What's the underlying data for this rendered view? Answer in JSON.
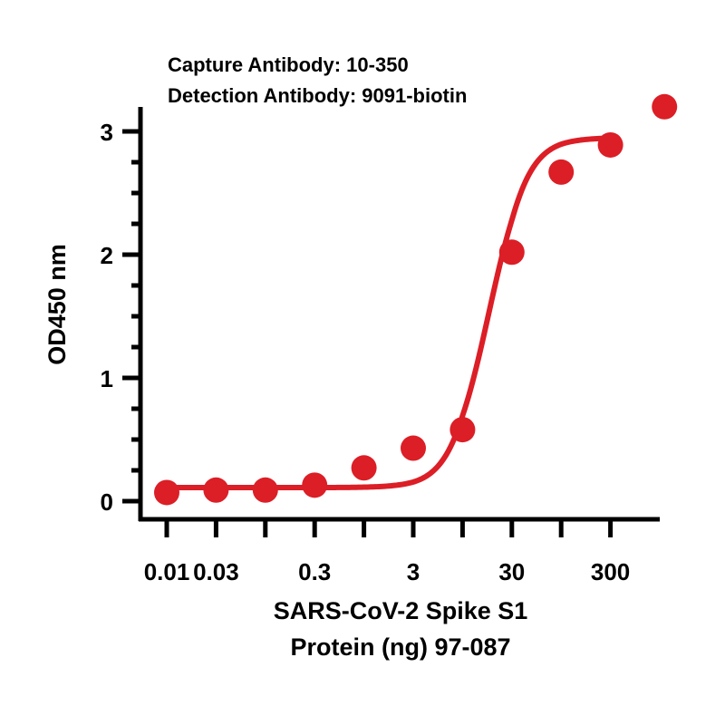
{
  "chart_data": {
    "type": "scatter",
    "title_lines": [
      "Capture Antibody: 10-350",
      "Detection Antibody: 9091-biotin"
    ],
    "xlabel_lines": [
      "SARS-CoV-2 Spike S1",
      "Protein (ng) 97-087"
    ],
    "ylabel": "OD450 nm",
    "x_scale": "log",
    "x_ticks": [
      0.01,
      0.03,
      0.1,
      0.3,
      1,
      3,
      10,
      30,
      100,
      300
    ],
    "x_tick_labels": [
      {
        "value": 0.01,
        "label": "0.01"
      },
      {
        "value": 0.03,
        "label": "0.03"
      },
      {
        "value": 0.3,
        "label": "0.3"
      },
      {
        "value": 3,
        "label": "3"
      },
      {
        "value": 30,
        "label": "30"
      },
      {
        "value": 300,
        "label": "300"
      }
    ],
    "ylim": [
      0,
      3.1
    ],
    "y_major_ticks": [
      0,
      1,
      2,
      3
    ],
    "y_tick_labels": [
      "0",
      "1",
      "2",
      "3"
    ],
    "y_minor_step": 0.25,
    "colors": {
      "series": "#dc1e26",
      "axis": "#000000"
    },
    "series": [
      {
        "points": [
          {
            "x": 0.01,
            "y": 0.07
          },
          {
            "x": 0.03,
            "y": 0.09
          },
          {
            "x": 0.1,
            "y": 0.09
          },
          {
            "x": 0.3,
            "y": 0.13
          },
          {
            "x": 1,
            "y": 0.27
          },
          {
            "x": 3,
            "y": 0.43
          },
          {
            "x": 10,
            "y": 0.58
          },
          {
            "x": 30,
            "y": 2.02
          },
          {
            "x": 100,
            "y": 2.67
          },
          {
            "x": 300,
            "y": 2.89
          },
          {
            "x": 1000,
            "y": 3.2
          }
        ],
        "fit": {
          "type": "4PL",
          "bottom": 0.11,
          "top": 2.95,
          "ec50": 18,
          "hill": 2.3
        }
      }
    ]
  }
}
